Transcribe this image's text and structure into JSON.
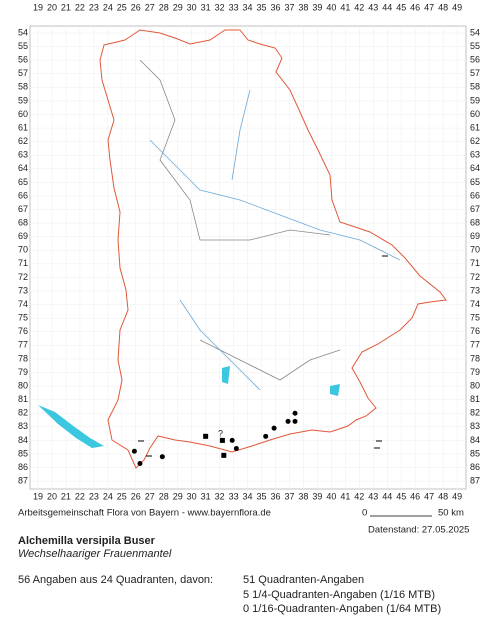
{
  "map": {
    "x_labels": [
      19,
      20,
      21,
      22,
      23,
      24,
      25,
      26,
      27,
      28,
      29,
      30,
      31,
      32,
      33,
      34,
      35,
      36,
      37,
      38,
      39,
      40,
      41,
      42,
      43,
      44,
      45,
      46,
      47,
      48,
      49
    ],
    "y_labels": [
      54,
      55,
      56,
      57,
      58,
      59,
      60,
      61,
      62,
      63,
      64,
      65,
      66,
      67,
      68,
      69,
      70,
      71,
      72,
      73,
      74,
      75,
      76,
      77,
      78,
      79,
      80,
      81,
      82,
      83,
      84,
      85,
      86,
      87
    ],
    "points": [
      {
        "x": 25.9,
        "y": 84.8,
        "symbol": "dot"
      },
      {
        "x": 26.3,
        "y": 85.7,
        "symbol": "dot"
      },
      {
        "x": 27.9,
        "y": 85.2,
        "symbol": "dot"
      },
      {
        "x": 32.9,
        "y": 84.0,
        "symbol": "dot"
      },
      {
        "x": 33.2,
        "y": 84.6,
        "symbol": "dot"
      },
      {
        "x": 35.3,
        "y": 83.7,
        "symbol": "dot"
      },
      {
        "x": 35.9,
        "y": 83.1,
        "symbol": "dot"
      },
      {
        "x": 36.9,
        "y": 82.6,
        "symbol": "dot"
      },
      {
        "x": 37.4,
        "y": 82.6,
        "symbol": "dot"
      },
      {
        "x": 37.4,
        "y": 82.0,
        "symbol": "dot"
      },
      {
        "x": 31.0,
        "y": 83.7,
        "symbol": "square"
      },
      {
        "x": 32.2,
        "y": 84.0,
        "symbol": "square"
      },
      {
        "x": 32.3,
        "y": 85.1,
        "symbol": "square"
      }
    ]
  },
  "footer": {
    "credit": "Arbeitsgemeinschaft Flora von Bayern - www.bayernflora.de",
    "scale_start": "0",
    "scale_end": "50 km",
    "date": "Datenstand: 27.05.2025",
    "title": "Alchemilla versipila Buser",
    "subtitle": "Wechselhaariger Frauenmantel",
    "summary": "56 Angaben aus 24 Quadranten, davon:",
    "stats": [
      "51 Quadranten-Angaben",
      "5 1/4-Quadranten-Angaben (1/16 MTB)",
      "0 1/16-Quadranten-Angaben (1/64 MTB)"
    ]
  }
}
